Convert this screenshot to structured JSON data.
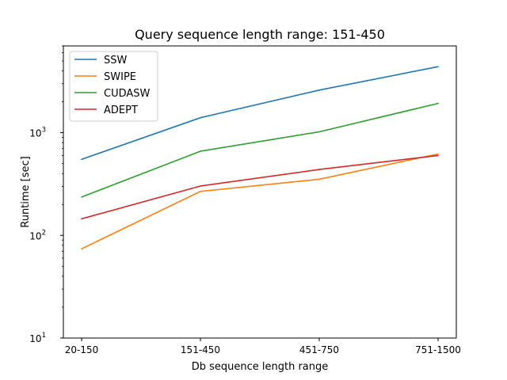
{
  "chart_data": {
    "type": "line",
    "title": "Query sequence length range: 151-450",
    "xlabel": "Db sequence length range",
    "ylabel": "Runtime [sec]",
    "categories": [
      "20-150",
      "151-450",
      "451-750",
      "751-1500"
    ],
    "yscale": "log",
    "ylim": [
      10,
      7000
    ],
    "yticks": [
      {
        "value": 10,
        "base": "10",
        "exp": "1"
      },
      {
        "value": 100,
        "base": "10",
        "exp": "2"
      },
      {
        "value": 1000,
        "base": "10",
        "exp": "3"
      }
    ],
    "grid": false,
    "legend_position": "top-left",
    "series": [
      {
        "name": "SSW",
        "color": "#1f77b4",
        "values": [
          550,
          1400,
          2600,
          4400
        ]
      },
      {
        "name": "SWIPE",
        "color": "#ff7f0e",
        "values": [
          74,
          268,
          352,
          620
        ]
      },
      {
        "name": "CUDASW",
        "color": "#2ca02c",
        "values": [
          236,
          660,
          1020,
          1930
        ]
      },
      {
        "name": "ADEPT",
        "color": "#d62728",
        "values": [
          145,
          302,
          438,
          600
        ]
      }
    ]
  }
}
